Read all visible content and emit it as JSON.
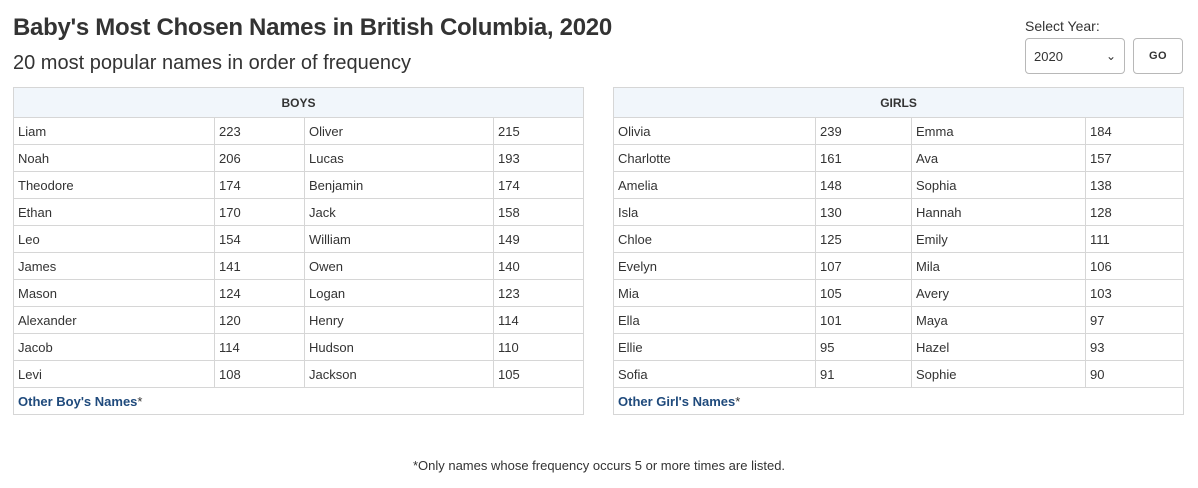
{
  "header": {
    "title": "Baby's Most Chosen Names in British Columbia, 2020",
    "subtitle": "20 most popular names in order of frequency"
  },
  "year_selector": {
    "label": "Select Year:",
    "selected": "2020",
    "go_label": "GO"
  },
  "boys": {
    "heading": "BOYS",
    "rows": [
      [
        {
          "name": "Liam",
          "count": "223"
        },
        {
          "name": "Oliver",
          "count": "215"
        }
      ],
      [
        {
          "name": "Noah",
          "count": "206"
        },
        {
          "name": "Lucas",
          "count": "193"
        }
      ],
      [
        {
          "name": "Theodore",
          "count": "174"
        },
        {
          "name": "Benjamin",
          "count": "174"
        }
      ],
      [
        {
          "name": "Ethan",
          "count": "170"
        },
        {
          "name": "Jack",
          "count": "158"
        }
      ],
      [
        {
          "name": "Leo",
          "count": "154"
        },
        {
          "name": "William",
          "count": "149"
        }
      ],
      [
        {
          "name": "James",
          "count": "141"
        },
        {
          "name": "Owen",
          "count": "140"
        }
      ],
      [
        {
          "name": "Mason",
          "count": "124"
        },
        {
          "name": "Logan",
          "count": "123"
        }
      ],
      [
        {
          "name": "Alexander",
          "count": "120"
        },
        {
          "name": "Henry",
          "count": "114"
        }
      ],
      [
        {
          "name": "Jacob",
          "count": "114"
        },
        {
          "name": "Hudson",
          "count": "110"
        }
      ],
      [
        {
          "name": "Levi",
          "count": "108"
        },
        {
          "name": "Jackson",
          "count": "105"
        }
      ]
    ],
    "other_link": "Other Boy's Names",
    "other_mark": "*"
  },
  "girls": {
    "heading": "GIRLS",
    "rows": [
      [
        {
          "name": "Olivia",
          "count": "239"
        },
        {
          "name": "Emma",
          "count": "184"
        }
      ],
      [
        {
          "name": "Charlotte",
          "count": "161"
        },
        {
          "name": "Ava",
          "count": "157"
        }
      ],
      [
        {
          "name": "Amelia",
          "count": "148"
        },
        {
          "name": "Sophia",
          "count": "138"
        }
      ],
      [
        {
          "name": "Isla",
          "count": "130"
        },
        {
          "name": "Hannah",
          "count": "128"
        }
      ],
      [
        {
          "name": "Chloe",
          "count": "125"
        },
        {
          "name": "Emily",
          "count": "111"
        }
      ],
      [
        {
          "name": "Evelyn",
          "count": "107"
        },
        {
          "name": "Mila",
          "count": "106"
        }
      ],
      [
        {
          "name": "Mia",
          "count": "105"
        },
        {
          "name": "Avery",
          "count": "103"
        }
      ],
      [
        {
          "name": "Ella",
          "count": "101"
        },
        {
          "name": "Maya",
          "count": "97"
        }
      ],
      [
        {
          "name": "Ellie",
          "count": "95"
        },
        {
          "name": "Hazel",
          "count": "93"
        }
      ],
      [
        {
          "name": "Sofia",
          "count": "91"
        },
        {
          "name": "Sophie",
          "count": "90"
        }
      ]
    ],
    "other_link": "Other Girl's Names",
    "other_mark": "*"
  },
  "footnote": "*Only names whose frequency occurs 5 or more times are listed.",
  "colors": {
    "link": "#1f4a7c",
    "header_bg": "#f1f6fb",
    "border": "#d6d6d6",
    "text": "#333333"
  }
}
